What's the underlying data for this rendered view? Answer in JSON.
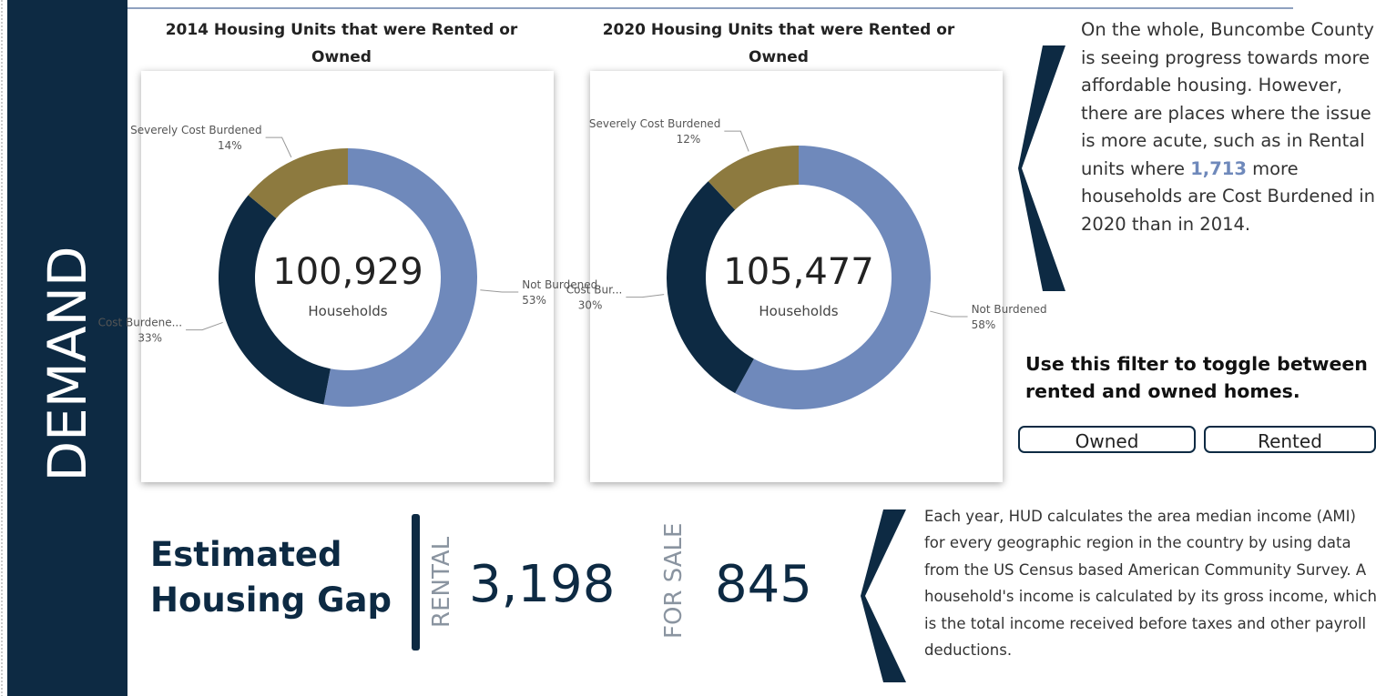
{
  "sidebar": {
    "title": "DEMAND"
  },
  "charts": [
    {
      "type": "donut",
      "title": "2014 Housing Units that were Rented or Owned",
      "center_value": "100,929",
      "center_label": "Households",
      "categories": [
        "Not Burdened",
        "Cost Burdene...",
        "Severely Cost Burdened"
      ],
      "values": [
        53,
        33,
        14
      ],
      "value_labels": [
        "53%",
        "33%",
        "14%"
      ],
      "colors": [
        "#6f89bb",
        "#0d2a43",
        "#8d7a3f"
      ]
    },
    {
      "type": "donut",
      "title": "2020 Housing Units that were Rented or Owned",
      "center_value": "105,477",
      "center_label": "Households",
      "categories": [
        "Not Burdened",
        "Cost Bur...",
        "Severely Cost Burdened"
      ],
      "values": [
        58,
        30,
        12
      ],
      "value_labels": [
        "58%",
        "30%",
        "12%"
      ],
      "colors": [
        "#6f89bb",
        "#0d2a43",
        "#8d7a3f"
      ]
    }
  ],
  "summary": {
    "parts": [
      "On the whole, Buncombe County is seeing progress towards more affordable housing. However, there are places where the issue is more acute, such as in Rental units where ",
      "1,713",
      " more households are Cost Burdened in 2020 than in 2014."
    ]
  },
  "filter": {
    "heading": "Use this filter to toggle between rented and owned homes.",
    "buttons": [
      "Owned",
      "Rented"
    ]
  },
  "gap": {
    "title": "Estimated Housing Gap",
    "items": [
      {
        "label": "RENTAL",
        "value": "3,198"
      },
      {
        "label": "FOR SALE",
        "value": "845"
      }
    ]
  },
  "note": {
    "text": "Each year, HUD calculates the area median income (AMI) for every geographic region in the country by using data from the US Census based American Community Survey. A household's income is calculated by its gross income, which is the total income received before taxes and other payroll deductions."
  }
}
